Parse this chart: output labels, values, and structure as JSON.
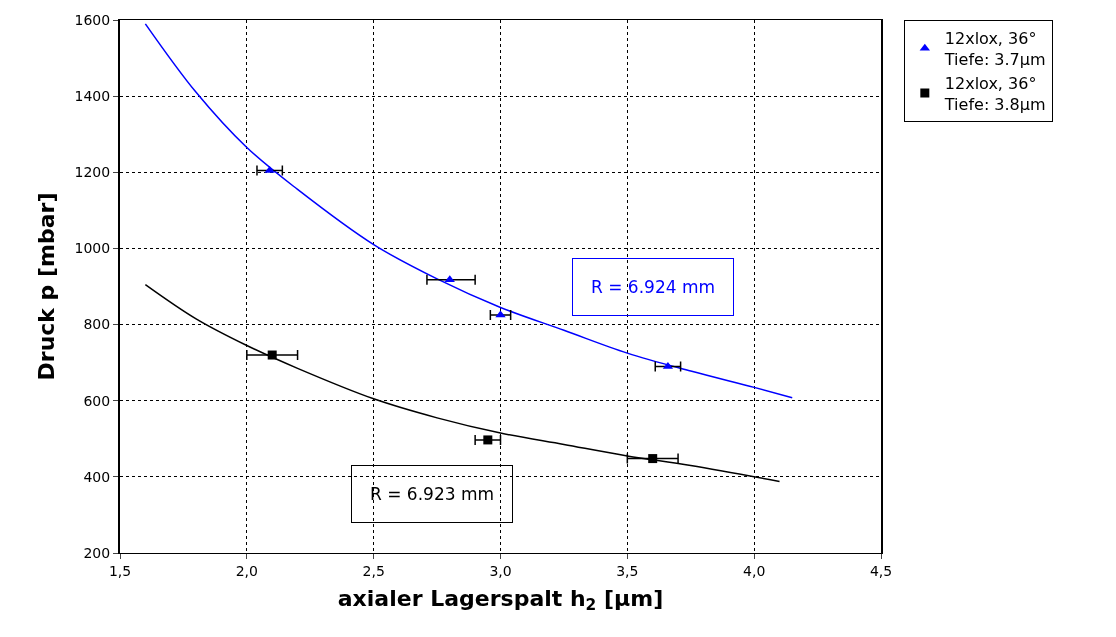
{
  "chart_data": {
    "type": "scatter",
    "xlabel": "axialer Lagerspalt h$_{2}$ [µm]",
    "ylabel": "Druck p [mbar]",
    "xlim": [
      1.5,
      4.5
    ],
    "xticks": [
      {
        "value": 1.5,
        "label": "1,5"
      },
      {
        "value": 2,
        "label": "2,0"
      },
      {
        "value": 2.5,
        "label": "2,5"
      },
      {
        "value": 3,
        "label": "3,0"
      },
      {
        "value": 3.5,
        "label": "3,5"
      },
      {
        "value": 4,
        "label": "4,0"
      },
      {
        "value": 4.5,
        "label": "4,5"
      }
    ],
    "ylim": [
      200,
      1600
    ],
    "yticks": [
      200,
      400,
      600,
      800,
      1000,
      1200,
      1400,
      1600
    ],
    "grid": true,
    "legend": "top right",
    "series": [
      {
        "type": "line",
        "color": "#0000ff",
        "marker": "none",
        "x": [
          1.6,
          1.8,
          2.0,
          2.2,
          2.5,
          2.75,
          3.0,
          3.25,
          3.5,
          3.75,
          4.0,
          4.15
        ],
        "values": [
          1590,
          1410,
          1265,
          1155,
          1010,
          920,
          845,
          785,
          725,
          678,
          635,
          608
        ]
      },
      {
        "type": "line",
        "color": "#000000",
        "marker": "none",
        "x": [
          1.6,
          1.8,
          2.0,
          2.2,
          2.5,
          2.75,
          3.0,
          3.25,
          3.5,
          3.75,
          4.1
        ],
        "values": [
          905,
          815,
          745,
          685,
          605,
          555,
          515,
          485,
          455,
          430,
          388
        ]
      },
      {
        "name": "12xlox, 36°\nTiefe: 3.7µm",
        "color": "#0000ff",
        "marker": "triangle",
        "x": [
          2.09,
          2.8,
          3.0,
          3.66
        ],
        "values": [
          1205,
          918,
          825,
          690
        ],
        "xerrors": [
          0.05,
          [
            2.71,
            2.9
          ],
          0.04,
          0.05
        ]
      },
      {
        "name": "12xlox, 36°\nTiefe: 3.8µm",
        "color": "#000000",
        "marker": "square",
        "x": [
          2.1,
          2.95,
          3.6
        ],
        "values": [
          720,
          497,
          448
        ],
        "xerrors": [
          0.1,
          0.05,
          0.1
        ]
      }
    ],
    "annotations": [
      "R = 6.924 mm",
      "R = 6.923 mm"
    ]
  }
}
